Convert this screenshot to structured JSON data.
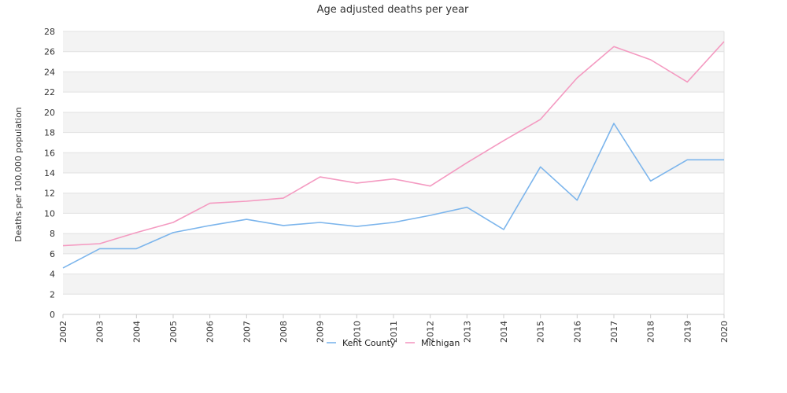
{
  "chart_data": {
    "type": "line",
    "title": "Age adjusted deaths per year",
    "xlabel": "",
    "ylabel": "Deaths per 100,000 population",
    "ylim": [
      0,
      28
    ],
    "yticks": [
      0,
      2,
      4,
      6,
      8,
      10,
      12,
      14,
      16,
      18,
      20,
      22,
      24,
      26,
      28
    ],
    "grid": "alternating horizontal bands",
    "legend_position": "bottom-center",
    "x": [
      "2002",
      "2003",
      "2004",
      "2005",
      "2006",
      "2007",
      "2008",
      "2009",
      "2010",
      "2011",
      "2012",
      "2013",
      "2014",
      "2015",
      "2016",
      "2017",
      "2018",
      "2019",
      "2020"
    ],
    "series": [
      {
        "name": "Kent County",
        "color": "#7cb5ec",
        "values": [
          4.6,
          6.5,
          6.5,
          8.1,
          8.8,
          9.4,
          8.8,
          9.1,
          8.7,
          9.1,
          9.8,
          10.6,
          8.4,
          14.6,
          11.3,
          18.9,
          13.2,
          15.3,
          15.3
        ]
      },
      {
        "name": "Michigan",
        "color": "#f49ac1",
        "values": [
          6.8,
          7.0,
          8.1,
          9.1,
          11.0,
          11.2,
          11.5,
          13.6,
          13.0,
          13.4,
          12.7,
          15.0,
          17.2,
          19.3,
          23.4,
          26.5,
          25.2,
          23.0,
          27.0
        ]
      }
    ]
  }
}
